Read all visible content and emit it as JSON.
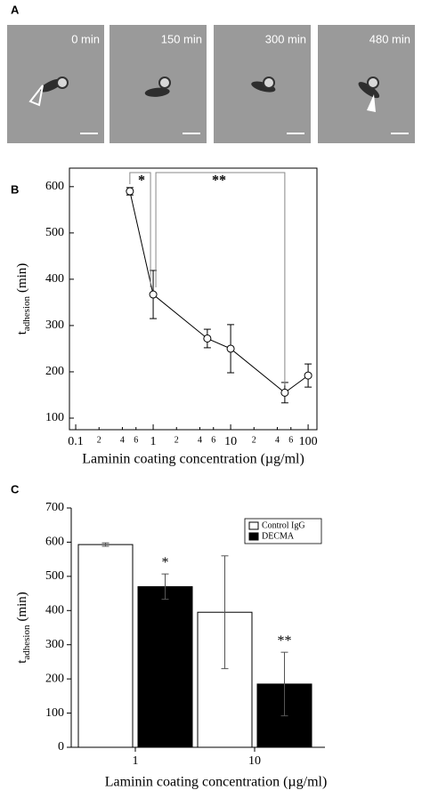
{
  "panel_labels": [
    "A",
    "B",
    "C"
  ],
  "images": [
    {
      "label": "0 min"
    },
    {
      "label": "150 min"
    },
    {
      "label": "300 min"
    },
    {
      "label": "480 min"
    }
  ],
  "chart_data": [
    {
      "type": "line",
      "x_label": "Laminin coating concentration (µg/ml)",
      "y_label": {
        "main": "t",
        "sub": "adhesion",
        "unit": "(min)"
      },
      "x": [
        0.5,
        1,
        5,
        10,
        50,
        100
      ],
      "series": [
        {
          "name": "tadhesion",
          "color": "#000000",
          "values": [
            590,
            367,
            272,
            250,
            155,
            192
          ],
          "errors": [
            8,
            52,
            20,
            52,
            22,
            25
          ]
        }
      ],
      "xlim": [
        0.083,
        130
      ],
      "log_x": true,
      "xticks": [
        0.1,
        {
          "value": 0.2,
          "label": "2"
        },
        {
          "value": 0.4,
          "label": "4"
        },
        {
          "value": 0.6,
          "label": "6"
        },
        1,
        2,
        4,
        6,
        10,
        {
          "value": 20,
          "label": "2"
        },
        {
          "value": 40,
          "label": "4"
        },
        {
          "value": 60,
          "label": "6"
        },
        100
      ],
      "ylim": [
        75,
        640
      ],
      "yticks": [
        100,
        200,
        300,
        400,
        500,
        600
      ],
      "annotations": [
        {
          "text": "*",
          "x": [
            0.5,
            1
          ]
        },
        {
          "text": "**",
          "x": [
            1,
            50
          ]
        }
      ]
    },
    {
      "type": "bar",
      "x_label": "Laminin coating concentration (µg/ml)",
      "y_label": {
        "main": "t",
        "sub": "adhesion",
        "unit": "(min)"
      },
      "categories": [
        "1",
        "10"
      ],
      "series": [
        {
          "name": "Control IgG",
          "color": "#ffffff",
          "values": [
            593,
            395
          ],
          "errors": [
            5,
            165
          ]
        },
        {
          "name": "DECMA",
          "color": "#000000",
          "values": [
            470,
            185
          ],
          "errors": [
            37,
            93
          ]
        }
      ],
      "ylim": [
        0,
        700
      ],
      "yticks": [
        0,
        100,
        200,
        300,
        400,
        500,
        600,
        700
      ],
      "legend": "upper right",
      "significance": [
        {
          "series": 1,
          "index": 0,
          "text": "*"
        },
        {
          "series": 1,
          "index": 1,
          "text": "**"
        }
      ]
    }
  ]
}
